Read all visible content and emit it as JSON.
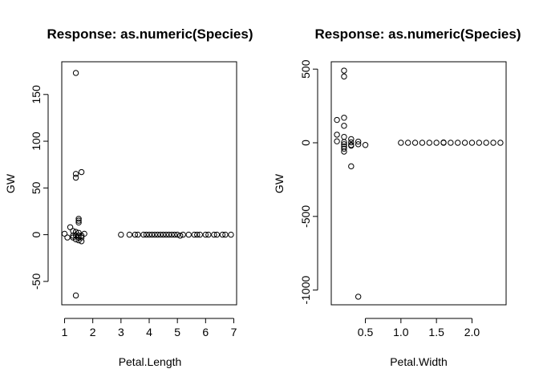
{
  "chart_data": [
    {
      "type": "scatter",
      "title": "Response: as.numeric(Species)",
      "xlabel": "Petal.Length",
      "ylabel": "GW",
      "xlim": [
        0.9,
        7.1
      ],
      "ylim": [
        -75,
        185
      ],
      "xticks": [
        1,
        2,
        3,
        4,
        5,
        6,
        7
      ],
      "yticks": [
        -50,
        0,
        50,
        100,
        150
      ],
      "marker": "open-circle",
      "grid": false,
      "points": [
        {
          "x": 1.4,
          "y": 173
        },
        {
          "x": 1.4,
          "y": 65
        },
        {
          "x": 1.4,
          "y": 61
        },
        {
          "x": 1.6,
          "y": 67
        },
        {
          "x": 1.5,
          "y": 17
        },
        {
          "x": 1.5,
          "y": 15
        },
        {
          "x": 1.5,
          "y": 13
        },
        {
          "x": 1.2,
          "y": 8
        },
        {
          "x": 1.3,
          "y": 4
        },
        {
          "x": 1.4,
          "y": 3
        },
        {
          "x": 1.5,
          "y": 2
        },
        {
          "x": 1.0,
          "y": 1
        },
        {
          "x": 1.7,
          "y": 1
        },
        {
          "x": 1.3,
          "y": -1
        },
        {
          "x": 1.4,
          "y": -1
        },
        {
          "x": 1.5,
          "y": -1
        },
        {
          "x": 1.6,
          "y": -1
        },
        {
          "x": 1.1,
          "y": -3
        },
        {
          "x": 1.3,
          "y": -3
        },
        {
          "x": 1.5,
          "y": -3
        },
        {
          "x": 1.6,
          "y": -3
        },
        {
          "x": 1.4,
          "y": -5
        },
        {
          "x": 1.5,
          "y": -6
        },
        {
          "x": 1.6,
          "y": -7
        },
        {
          "x": 1.4,
          "y": -65
        },
        {
          "x": 3.0,
          "y": 0
        },
        {
          "x": 3.3,
          "y": 0
        },
        {
          "x": 3.5,
          "y": 0
        },
        {
          "x": 3.6,
          "y": 0
        },
        {
          "x": 3.8,
          "y": 0
        },
        {
          "x": 3.9,
          "y": 0
        },
        {
          "x": 4.0,
          "y": 0
        },
        {
          "x": 4.1,
          "y": 0
        },
        {
          "x": 4.2,
          "y": 0
        },
        {
          "x": 4.3,
          "y": 0
        },
        {
          "x": 4.4,
          "y": 0
        },
        {
          "x": 4.5,
          "y": 0
        },
        {
          "x": 4.6,
          "y": 0
        },
        {
          "x": 4.7,
          "y": 0
        },
        {
          "x": 4.8,
          "y": 0
        },
        {
          "x": 4.9,
          "y": 0
        },
        {
          "x": 5.0,
          "y": 0
        },
        {
          "x": 5.1,
          "y": -1
        },
        {
          "x": 5.2,
          "y": 0
        },
        {
          "x": 5.4,
          "y": 0
        },
        {
          "x": 5.6,
          "y": 0
        },
        {
          "x": 5.7,
          "y": 0
        },
        {
          "x": 5.8,
          "y": 0
        },
        {
          "x": 6.0,
          "y": 0
        },
        {
          "x": 6.1,
          "y": 0
        },
        {
          "x": 6.3,
          "y": 0
        },
        {
          "x": 6.4,
          "y": 0
        },
        {
          "x": 6.6,
          "y": 0
        },
        {
          "x": 6.7,
          "y": 0
        },
        {
          "x": 6.9,
          "y": 0
        }
      ]
    },
    {
      "type": "scatter",
      "title": "Response: as.numeric(Species)",
      "xlabel": "Petal.Width",
      "ylabel": "GW",
      "xlim": [
        0.02,
        2.48
      ],
      "ylim": [
        -1100,
        550
      ],
      "xticks": [
        0.5,
        1.0,
        1.5,
        2.0
      ],
      "xticklabels": [
        "0.5",
        "1.0",
        "1.5",
        "2.0"
      ],
      "yticks": [
        -1000,
        -500,
        0,
        500
      ],
      "marker": "open-circle",
      "grid": false,
      "points": [
        {
          "x": 0.2,
          "y": 490
        },
        {
          "x": 0.2,
          "y": 450
        },
        {
          "x": 0.2,
          "y": 170
        },
        {
          "x": 0.1,
          "y": 155
        },
        {
          "x": 0.2,
          "y": 115
        },
        {
          "x": 0.1,
          "y": 55
        },
        {
          "x": 0.2,
          "y": 40
        },
        {
          "x": 0.3,
          "y": 25
        },
        {
          "x": 0.1,
          "y": 10
        },
        {
          "x": 0.2,
          "y": 5
        },
        {
          "x": 0.3,
          "y": 3
        },
        {
          "x": 0.4,
          "y": 8
        },
        {
          "x": 0.2,
          "y": -10
        },
        {
          "x": 0.3,
          "y": -15
        },
        {
          "x": 0.4,
          "y": -10
        },
        {
          "x": 0.2,
          "y": -25
        },
        {
          "x": 0.3,
          "y": -20
        },
        {
          "x": 0.5,
          "y": -15
        },
        {
          "x": 0.2,
          "y": -40
        },
        {
          "x": 0.2,
          "y": -60
        },
        {
          "x": 0.3,
          "y": -160
        },
        {
          "x": 0.4,
          "y": -1045
        },
        {
          "x": 1.0,
          "y": 0
        },
        {
          "x": 1.1,
          "y": 0
        },
        {
          "x": 1.2,
          "y": 0
        },
        {
          "x": 1.3,
          "y": 0
        },
        {
          "x": 1.4,
          "y": 0
        },
        {
          "x": 1.5,
          "y": 0
        },
        {
          "x": 1.6,
          "y": 0
        },
        {
          "x": 1.6,
          "y": 2
        },
        {
          "x": 1.7,
          "y": 0
        },
        {
          "x": 1.8,
          "y": 0
        },
        {
          "x": 1.9,
          "y": 0
        },
        {
          "x": 2.0,
          "y": 0
        },
        {
          "x": 2.1,
          "y": 0
        },
        {
          "x": 2.2,
          "y": 0
        },
        {
          "x": 2.3,
          "y": 0
        },
        {
          "x": 2.4,
          "y": 0
        }
      ]
    }
  ]
}
